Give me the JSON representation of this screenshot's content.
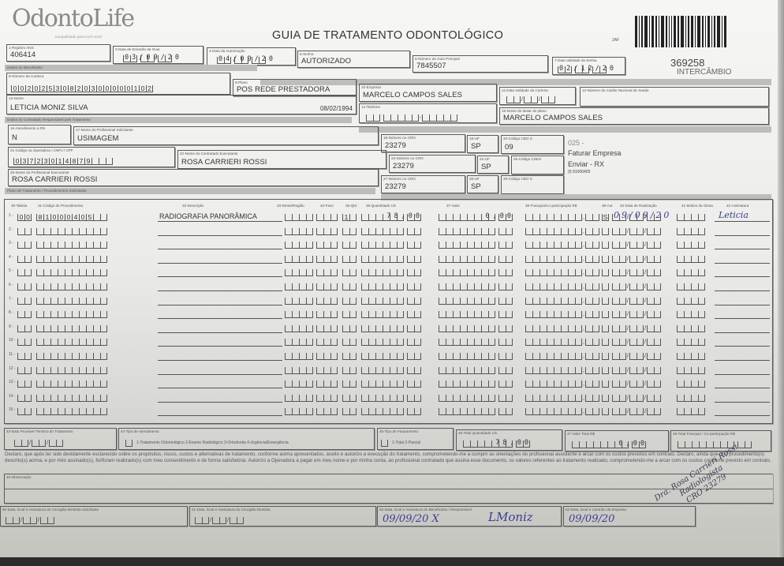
{
  "header": {
    "logo": "OdontoLife",
    "logo_tagline": "tranquilidade para você sorrir",
    "title": "GUIA DE TRATAMENTO ODONTOLÓGICO",
    "small_code": "2AF",
    "guide_number": "369258",
    "guide_type": "INTERCÂMBIO"
  },
  "fields": {
    "f1": {
      "label": "1-Registro ANS",
      "value": "406414"
    },
    "f3": {
      "label": "3-Data de Emissão da Guia",
      "value": "03/09/20"
    },
    "f4": {
      "label": "4-Data da Autorização",
      "value": "04/09/20"
    },
    "f5": {
      "label": "5-Senha",
      "value": "AUTORIZADO"
    },
    "f6": {
      "label": "6-Número da Guia Principal",
      "value": "7845507"
    },
    "f7": {
      "label": "7-Data Validade da Senha",
      "value": "02/12/20"
    },
    "f8": {
      "label": "8-Número da Carteira",
      "value": "00202530820300000102"
    },
    "f9": {
      "label": "9-Plano",
      "value": "POS REDE PRESTADORA"
    },
    "f10": {
      "label": "10-Empresa",
      "value": "MARCELO CAMPOS SALES"
    },
    "f11": {
      "label": "11-Data Validade da Carteira",
      "value": "//"
    },
    "f12": {
      "label": "12-Número do Cartão Nacional de Saúde",
      "value": ""
    },
    "f13": {
      "label": "13-Nome",
      "value": "LETICIA MONIZ SILVA",
      "birth": "08/02/1994"
    },
    "f14": {
      "label": "14-Telefone",
      "value": ""
    },
    "f15": {
      "label": "15-Nome do titular do plano",
      "value": "MARCELO CAMPOS SALES"
    },
    "f16": {
      "label": "16-Atendimento a RN",
      "value": "N"
    },
    "f17": {
      "label": "17-Nome do Profissional Solicitante",
      "value": "USIMAGEM"
    },
    "f18": {
      "label": "18-Número no CRO",
      "value": "23279"
    },
    "f19": {
      "label": "19-UF",
      "value": "SP"
    },
    "f20": {
      "label": "20-Código CBO S",
      "value": "09"
    },
    "f21": {
      "label": "21-Código na Operadora / CNPJ / CPF",
      "value": "03723014879"
    },
    "f22": {
      "label": "22-Nome do Contratado Executante",
      "value": "ROSA CARRIERI ROSSI"
    },
    "f23": {
      "label": "23-Número no CRO",
      "value": "23279"
    },
    "f24": {
      "label": "24-UF",
      "value": "SP"
    },
    "f25": {
      "label": "25-Código CNES",
      "value": ""
    },
    "f26": {
      "label": "26-Nome do Profissional Executante",
      "value": "ROSA CARRIERI ROSSI"
    },
    "f27": {
      "label": "27-Número no CRO",
      "value": "23279"
    },
    "f28": {
      "label": "28-UF",
      "value": "SP"
    },
    "f29": {
      "label": "29-Código CBO S",
      "value": ""
    },
    "f43": {
      "label": "43-Data Provável Término do Tratamento",
      "value": "//"
    },
    "f44": {
      "label": "44-Tipo de Atendimento",
      "options": "1-Tratamento Odontológico 2-Exame Radiológico 3-Ortodontia 4-Urgência/Emergência"
    },
    "f45": {
      "label": "45-Tipo de Faturamento",
      "options": "1-Total 2-Parcial"
    },
    "f46": {
      "label": "46-Total Quantidade US",
      "value": "78,00"
    },
    "f47": {
      "label": "47-Valor Total R$",
      "value": "0,00"
    },
    "f48": {
      "label": "48-Total Franquia / Co-participação R$",
      "value": ""
    },
    "f49": {
      "label": "49-Observação",
      "value": ""
    },
    "f50": {
      "label": "50-Data, local e Assinatura do Cirurgião-Dentista Solicitante",
      "value": "//"
    },
    "f51": {
      "label": "51-Data, local e Assinatura do Cirurgião-Dentista",
      "value": "//"
    },
    "f52": {
      "label": "52-Data, local e Assinatura do Beneficiário / Responsável",
      "value": "09/09/20 X",
      "signature": "LMoniz"
    },
    "f53": {
      "label": "53-Data, local e Carimbo da Empresa",
      "value": "09/09/20"
    }
  },
  "sections": {
    "beneficiario": "Dados do Beneficiário",
    "contratado": "Dados do Contratado Responsável pelo Tratamento",
    "plano": "Plano de Tratamento / Procedimentos Solicitados"
  },
  "side_note": {
    "line1": "025 -",
    "line2": "Faturar Empresa",
    "line3": "Enviar - RX",
    "line4": "(f) 81000405"
  },
  "procedures": {
    "headers": {
      "tabela": "30-Tabela",
      "codigo": "31-Código do Procedimento",
      "descricao": "32-Descrição",
      "dente": "33-Dente/Região",
      "face": "34-Face",
      "qtd": "35-Qtd",
      "us": "36-Quantidade US",
      "valor": "37-Valor",
      "franquia": "38-Franquia/Co-participação R$",
      "aut": "39-Aut",
      "data": "40-Data de Realização",
      "glosa": "41-Motivo da Glosa",
      "assinatura": "42-Assinatura"
    },
    "rows": [
      {
        "num": "1 -",
        "tabela": "00",
        "codigo": "81000405",
        "descricao": "RADIOGRAFIA PANORÂMICA",
        "qtd": "1",
        "us": "78,00",
        "valor": "0,00",
        "aut": "S",
        "data": "09/09/20",
        "assinatura": "Leticia"
      },
      {
        "num": "2 -"
      },
      {
        "num": "3 -"
      },
      {
        "num": "4 -"
      },
      {
        "num": "5 -"
      },
      {
        "num": "6 -"
      },
      {
        "num": "7 -"
      },
      {
        "num": "8 -"
      },
      {
        "num": "9 -"
      },
      {
        "num": "10 -"
      },
      {
        "num": "11 -"
      },
      {
        "num": "12 -"
      },
      {
        "num": "13 -"
      },
      {
        "num": "14 -"
      },
      {
        "num": "15 -"
      }
    ]
  },
  "declaration": "Declaro, que após ter sido devidamente esclarecido sobre os propósitos, riscos, custos e alternativas de tratamento, conforme acima apresentados, aceito e autorizo a execução do tratamento, comprometendo-me a cumprir as orientações do profissional assistente e arcar com os custos previstos em contrato. Declaro, ainda que o(s) procedimento(s) descrito(s) acima, e por mim assinado(s), foi/foram realizado(s) com meu consentimento e de forma satisfatória. Autorizo a Operadora a pagar em meu nome e por minha conta, ao profissional contratado que assina esse documento, os valores referentes ao tratamento realizado, comprometendo-me a arcar com os custos conforme previsto em contrato.",
  "stamp": {
    "line1": "Dra. Rosa Carrieri Rossi",
    "line2": "Radiologista",
    "line3": "CRO 23279"
  },
  "colors": {
    "ink": "#3a3f8f",
    "section_bar": "#bdbdba",
    "text": "#333333"
  }
}
